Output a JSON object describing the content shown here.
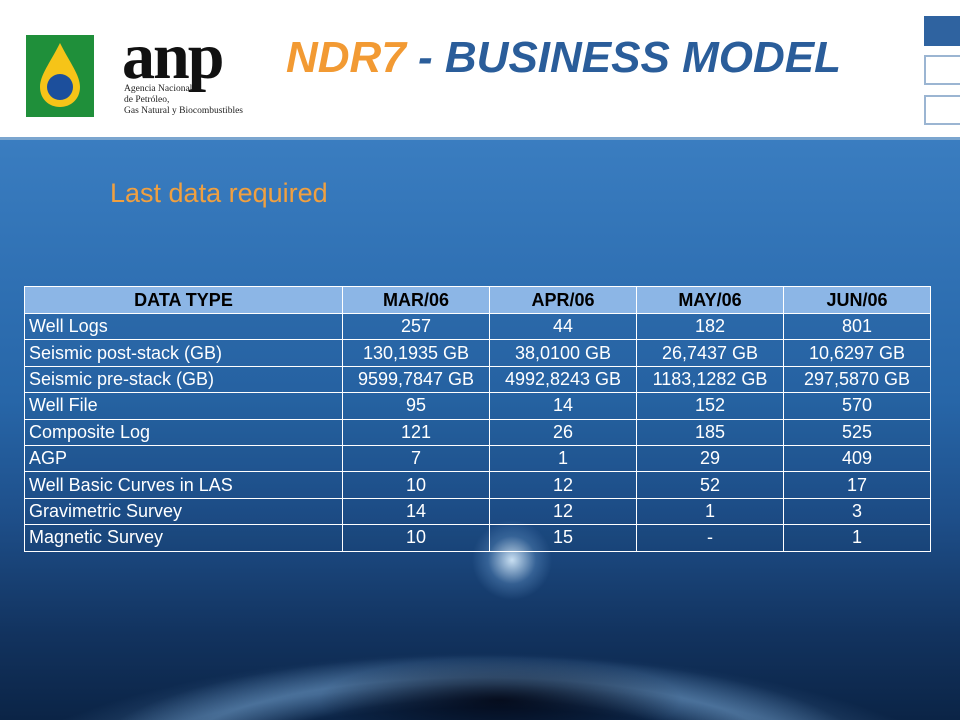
{
  "header": {
    "logo_word": "anp",
    "logo_lines": [
      "Agencia Nacional",
      "de Petróleo,",
      "Gas Natural y Biocombustibles"
    ],
    "title_part1": "NDR7",
    "title_part2": " - BUSINESS MODEL"
  },
  "subtitle": "Last data required",
  "colors": {
    "accent_orange": "#f29a33",
    "title_blue": "#2a5d9a",
    "table_header": "#8cb6e6"
  },
  "table": {
    "headers": [
      "DATA TYPE",
      "MAR/06",
      "APR/06",
      "MAY/06",
      "JUN/06"
    ],
    "rows": [
      [
        "Well Logs",
        "257",
        "44",
        "182",
        "801"
      ],
      [
        "Seismic  post-stack  (GB)",
        "130,1935 GB",
        "38,0100 GB",
        "26,7437 GB",
        "10,6297 GB"
      ],
      [
        "Seismic pre-stack  (GB)",
        "9599,7847 GB",
        "4992,8243 GB",
        "1183,1282 GB",
        "297,5870 GB"
      ],
      [
        "Well File",
        "95",
        "14",
        "152",
        "570"
      ],
      [
        "Composite Log",
        "121",
        "26",
        "185",
        "525"
      ],
      [
        "AGP",
        "7",
        "1",
        "29",
        "409"
      ],
      [
        "Well Basic Curves in LAS",
        "10",
        "12",
        "52",
        "17"
      ],
      [
        "Gravimetric Survey",
        "14",
        "12",
        "1",
        "3"
      ],
      [
        "Magnetic Survey",
        "10",
        "15",
        "-",
        "1"
      ]
    ]
  }
}
